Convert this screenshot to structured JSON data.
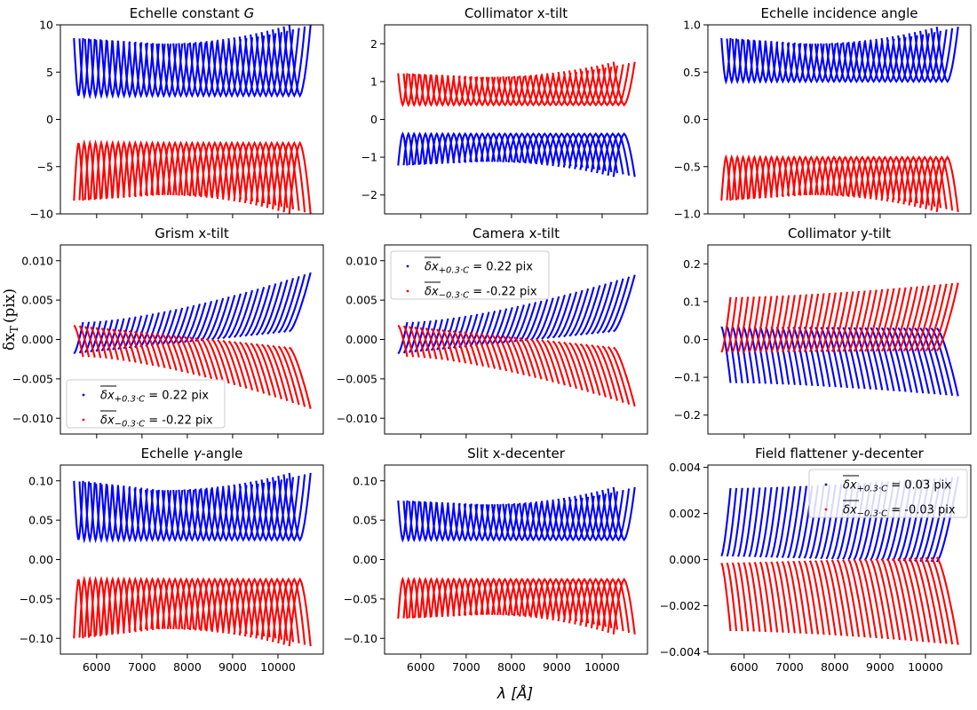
{
  "figure": {
    "xlabel": "λ [Å]",
    "ylabel": "δx",
    "ylabel_sub": "T",
    "ylabel_unit": "(pix)"
  },
  "chart_data": [
    {
      "type": "scatter",
      "title_pre": "Echelle constant ",
      "title_sym": "G",
      "title_post": "",
      "xlim": [
        5200,
        11000
      ],
      "ylim": [
        -10,
        10
      ],
      "xticks": [
        6000,
        7000,
        8000,
        9000,
        10000
      ],
      "yticks": [
        -10,
        -5,
        0,
        5,
        10
      ],
      "ytick_labels": [
        "−10",
        "−5",
        "0",
        "5",
        "10"
      ],
      "shape": "split",
      "series": [
        {
          "name": "+0.3C",
          "color": "#0000ff",
          "min_envelope": 2.5,
          "max_envelope_start": 8.6,
          "max_envelope_mid": 8.0,
          "max_envelope_end": 10.0
        },
        {
          "name": "-0.3C",
          "color": "#ff0000",
          "min_envelope": -2.5,
          "max_envelope_start": -8.6,
          "max_envelope_mid": -8.0,
          "max_envelope_end": -10.0
        }
      ],
      "legend": null
    },
    {
      "type": "scatter",
      "title_pre": "Collimator x-tilt",
      "title_sym": "",
      "title_post": "",
      "xlim": [
        5200,
        11000
      ],
      "ylim": [
        -2.5,
        2.5
      ],
      "xticks": [
        6000,
        7000,
        8000,
        9000,
        10000
      ],
      "yticks": [
        -2,
        -1,
        0,
        1,
        2
      ],
      "ytick_labels": [
        "−2",
        "−1",
        "0",
        "1",
        "2"
      ],
      "shape": "split",
      "series": [
        {
          "name": "+0.3C",
          "color": "#0000ff",
          "min_envelope": -0.38,
          "max_envelope_start": -1.22,
          "max_envelope_mid": -1.12,
          "max_envelope_end": -1.52
        },
        {
          "name": "-0.3C",
          "color": "#ff0000",
          "min_envelope": 0.38,
          "max_envelope_start": 1.22,
          "max_envelope_mid": 1.12,
          "max_envelope_end": 1.52
        }
      ],
      "legend": null
    },
    {
      "type": "scatter",
      "title_pre": "Echelle incidence angle",
      "title_sym": "",
      "title_post": "",
      "xlim": [
        5200,
        11000
      ],
      "ylim": [
        -1.0,
        1.0
      ],
      "xticks": [
        6000,
        7000,
        8000,
        9000,
        10000
      ],
      "yticks": [
        -1.0,
        -0.5,
        0.0,
        0.5,
        1.0
      ],
      "ytick_labels": [
        "−1.0",
        "−0.5",
        "0.0",
        "0.5",
        "1.0"
      ],
      "shape": "split",
      "series": [
        {
          "name": "+0.3C",
          "color": "#0000ff",
          "min_envelope": 0.4,
          "max_envelope_start": 0.86,
          "max_envelope_mid": 0.8,
          "max_envelope_end": 0.98
        },
        {
          "name": "-0.3C",
          "color": "#ff0000",
          "min_envelope": -0.4,
          "max_envelope_start": -0.86,
          "max_envelope_mid": -0.8,
          "max_envelope_end": -0.98
        }
      ],
      "legend": null
    },
    {
      "type": "scatter",
      "title_pre": "Grism x-tilt",
      "title_sym": "",
      "title_post": "",
      "xlim": [
        5200,
        11000
      ],
      "ylim": [
        -0.012,
        0.012
      ],
      "xticks": [
        6000,
        7000,
        8000,
        9000,
        10000
      ],
      "yticks": [
        -0.01,
        -0.005,
        0.0,
        0.005,
        0.01
      ],
      "ytick_labels": [
        "−0.010",
        "−0.005",
        "0.000",
        "0.005",
        "0.010"
      ],
      "shape": "fan",
      "series": [
        {
          "name": "+0.3C",
          "color": "#0000ff",
          "near_start": -0.0018,
          "near_end": 0.001,
          "far_start": 0.0022,
          "far_end": 0.0085
        },
        {
          "name": "-0.3C",
          "color": "#ff0000",
          "near_start": 0.0018,
          "near_end": -0.001,
          "far_start": -0.0022,
          "far_end": -0.0088
        }
      ],
      "legend": {
        "position": "lower-left",
        "entries": [
          {
            "color": "#0000ff",
            "sub": "+0.3·C",
            "value": " = 0.22 pix"
          },
          {
            "color": "#ff0000",
            "sub": "−0.3·C",
            "value": " = -0.22 pix"
          }
        ]
      }
    },
    {
      "type": "scatter",
      "title_pre": "Camera x-tilt",
      "title_sym": "",
      "title_post": "",
      "xlim": [
        5200,
        11000
      ],
      "ylim": [
        -0.012,
        0.012
      ],
      "xticks": [
        6000,
        7000,
        8000,
        9000,
        10000
      ],
      "yticks": [
        -0.01,
        -0.005,
        0.0,
        0.005,
        0.01
      ],
      "ytick_labels": [
        "−0.010",
        "−0.005",
        "0.000",
        "0.005",
        "0.010"
      ],
      "shape": "fan",
      "series": [
        {
          "name": "+0.3C",
          "color": "#0000ff",
          "near_start": -0.0018,
          "near_end": 0.001,
          "far_start": 0.0022,
          "far_end": 0.0082
        },
        {
          "name": "-0.3C",
          "color": "#ff0000",
          "near_start": 0.0018,
          "near_end": -0.001,
          "far_start": -0.0022,
          "far_end": -0.0085
        }
      ],
      "legend": {
        "position": "upper-left",
        "entries": [
          {
            "color": "#0000ff",
            "sub": "+0.3·C",
            "value": " = 0.22 pix"
          },
          {
            "color": "#ff0000",
            "sub": "−0.3·C",
            "value": " = -0.22 pix"
          }
        ]
      }
    },
    {
      "type": "scatter",
      "title_pre": "Collimator y-tilt",
      "title_sym": "",
      "title_post": "",
      "xlim": [
        5200,
        11000
      ],
      "ylim": [
        -0.25,
        0.25
      ],
      "xticks": [
        6000,
        7000,
        8000,
        9000,
        10000
      ],
      "yticks": [
        -0.2,
        -0.1,
        0.0,
        0.1,
        0.2
      ],
      "ytick_labels": [
        "−0.2",
        "−0.1",
        "0.0",
        "0.1",
        "0.2"
      ],
      "shape": "fan",
      "series": [
        {
          "name": "+0.3C",
          "color": "#0000ff",
          "near_start": 0.034,
          "near_end": 0.03,
          "far_start": -0.115,
          "far_end": -0.15
        },
        {
          "name": "-0.3C",
          "color": "#ff0000",
          "near_start": -0.034,
          "near_end": -0.03,
          "far_start": 0.112,
          "far_end": 0.15
        }
      ],
      "legend": null
    },
    {
      "type": "scatter",
      "title_pre": "Echelle ",
      "title_sym": "γ",
      "title_post": "-angle",
      "xlim": [
        5200,
        11000
      ],
      "ylim": [
        -0.12,
        0.12
      ],
      "xticks": [
        6000,
        7000,
        8000,
        9000,
        10000
      ],
      "yticks": [
        -0.1,
        -0.05,
        0.0,
        0.05,
        0.1
      ],
      "ytick_labels": [
        "−0.10",
        "−0.05",
        "0.00",
        "0.05",
        "0.10"
      ],
      "shape": "split",
      "series": [
        {
          "name": "+0.3C",
          "color": "#0000ff",
          "min_envelope": 0.025,
          "max_envelope_start": 0.1,
          "max_envelope_mid": 0.088,
          "max_envelope_end": 0.11
        },
        {
          "name": "-0.3C",
          "color": "#ff0000",
          "min_envelope": -0.025,
          "max_envelope_start": -0.1,
          "max_envelope_mid": -0.088,
          "max_envelope_end": -0.11
        }
      ],
      "legend": null
    },
    {
      "type": "scatter",
      "title_pre": "Slit x-decenter",
      "title_sym": "",
      "title_post": "",
      "xlim": [
        5200,
        11000
      ],
      "ylim": [
        -0.12,
        0.12
      ],
      "xticks": [
        6000,
        7000,
        8000,
        9000,
        10000
      ],
      "yticks": [
        -0.1,
        -0.05,
        0.0,
        0.05,
        0.1
      ],
      "ytick_labels": [
        "−0.10",
        "−0.05",
        "0.00",
        "0.05",
        "0.10"
      ],
      "shape": "split",
      "series": [
        {
          "name": "+0.3C",
          "color": "#0000ff",
          "min_envelope": 0.025,
          "max_envelope_start": 0.075,
          "max_envelope_mid": 0.07,
          "max_envelope_end": 0.092
        },
        {
          "name": "-0.3C",
          "color": "#ff0000",
          "min_envelope": -0.025,
          "max_envelope_start": -0.075,
          "max_envelope_mid": -0.07,
          "max_envelope_end": -0.095
        }
      ],
      "legend": null
    },
    {
      "type": "scatter",
      "title_pre": "Field flattener y-decenter",
      "title_sym": "",
      "title_post": "",
      "xlim": [
        5200,
        11000
      ],
      "ylim": [
        -0.0041,
        0.0041
      ],
      "xticks": [
        6000,
        7000,
        8000,
        9000,
        10000
      ],
      "yticks": [
        -0.004,
        -0.002,
        0.0,
        0.002,
        0.004
      ],
      "ytick_labels": [
        "−0.004",
        "−0.002",
        "0.000",
        "0.002",
        "0.004"
      ],
      "shape": "fan",
      "series": [
        {
          "name": "+0.3C",
          "color": "#0000ff",
          "near_start": 0.00015,
          "near_end": -0.0001,
          "far_start": 0.0031,
          "far_end": 0.0036
        },
        {
          "name": "-0.3C",
          "color": "#ff0000",
          "near_start": -0.00015,
          "near_end": 0.0001,
          "far_start": -0.0031,
          "far_end": -0.0037
        }
      ],
      "legend": {
        "position": "upper-right",
        "entries": [
          {
            "color": "#0000ff",
            "sub": "+0.3·C",
            "value": " = 0.03 pix"
          },
          {
            "color": "#ff0000",
            "sub": "−0.3·C",
            "value": " = -0.03 pix"
          }
        ]
      }
    }
  ]
}
